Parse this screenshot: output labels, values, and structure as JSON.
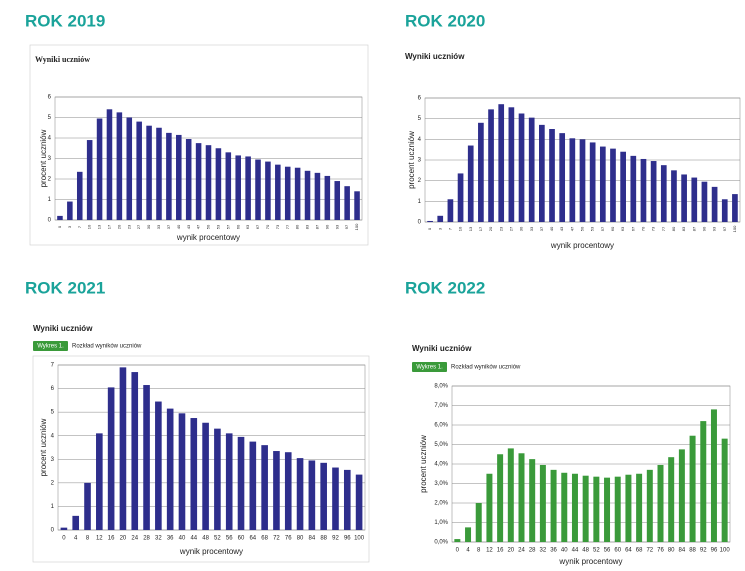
{
  "chart_data": [
    {
      "type": "bar",
      "heading": "ROK 2019",
      "title": "Wyniki uczniów",
      "xlabel": "wynik procentowy",
      "ylabel": "procent uczniów",
      "color": "#2e2e8c",
      "categories": [
        "0",
        "3",
        "7",
        "10",
        "13",
        "17",
        "20",
        "23",
        "27",
        "30",
        "33",
        "37",
        "40",
        "43",
        "47",
        "50",
        "53",
        "57",
        "60",
        "63",
        "67",
        "70",
        "73",
        "77",
        "80",
        "83",
        "87",
        "90",
        "93",
        "97",
        "100"
      ],
      "values": [
        0.2,
        0.9,
        2.35,
        3.9,
        4.95,
        5.4,
        5.25,
        5.0,
        4.8,
        4.6,
        4.5,
        4.25,
        4.15,
        3.95,
        3.75,
        3.65,
        3.5,
        3.3,
        3.15,
        3.1,
        2.95,
        2.85,
        2.7,
        2.6,
        2.55,
        2.4,
        2.3,
        2.15,
        1.9,
        1.65,
        1.4
      ],
      "ylim": [
        0,
        6
      ],
      "yticks": [
        0,
        1,
        2,
        3,
        4,
        5,
        6
      ],
      "grid": true
    },
    {
      "type": "bar",
      "heading": "ROK 2020",
      "title": "Wyniki uczniów",
      "xlabel": "wynik procentowy",
      "ylabel": "procent uczniów",
      "color": "#2e2e8c",
      "categories": [
        "0",
        "3",
        "7",
        "10",
        "13",
        "17",
        "20",
        "23",
        "27",
        "30",
        "33",
        "37",
        "40",
        "43",
        "47",
        "50",
        "53",
        "57",
        "60",
        "63",
        "67",
        "70",
        "73",
        "77",
        "80",
        "83",
        "87",
        "90",
        "93",
        "97",
        "100"
      ],
      "values": [
        0.05,
        0.3,
        1.1,
        2.35,
        3.7,
        4.8,
        5.45,
        5.7,
        5.55,
        5.25,
        5.05,
        4.7,
        4.5,
        4.3,
        4.05,
        4.0,
        3.85,
        3.65,
        3.55,
        3.4,
        3.2,
        3.05,
        2.95,
        2.75,
        2.5,
        2.3,
        2.15,
        1.95,
        1.7,
        1.1,
        1.35
      ],
      "ylim": [
        0,
        6
      ],
      "yticks": [
        0,
        1,
        2,
        3,
        4,
        5,
        6
      ],
      "grid": true
    },
    {
      "type": "bar",
      "heading": "ROK 2021",
      "title": "Wyniki uczniów",
      "badge": "Wykres 1.",
      "subtitle": "Rozkład wyników uczniów",
      "xlabel": "wynik procentowy",
      "ylabel": "procent uczniów",
      "color": "#2e2e8c",
      "categories": [
        "0",
        "4",
        "8",
        "12",
        "16",
        "20",
        "24",
        "28",
        "32",
        "36",
        "40",
        "44",
        "48",
        "52",
        "56",
        "60",
        "64",
        "68",
        "72",
        "76",
        "80",
        "84",
        "88",
        "92",
        "96",
        "100"
      ],
      "values": [
        0.1,
        0.6,
        2.0,
        4.1,
        6.05,
        6.9,
        6.7,
        6.15,
        5.45,
        5.15,
        4.95,
        4.75,
        4.55,
        4.3,
        4.1,
        3.95,
        3.75,
        3.6,
        3.35,
        3.3,
        3.05,
        2.95,
        2.85,
        2.65,
        2.55,
        2.35
      ],
      "ylim": [
        0,
        7
      ],
      "yticks": [
        0,
        1,
        2,
        3,
        4,
        5,
        6,
        7
      ],
      "grid": true
    },
    {
      "type": "bar",
      "heading": "ROK 2022",
      "title": "Wyniki uczniów",
      "badge": "Wykres 1.",
      "subtitle": "Rozkład wyników uczniów",
      "xlabel": "wynik procentowy",
      "ylabel": "procent uczniów",
      "color": "#3a9a3a",
      "categories": [
        "0",
        "4",
        "8",
        "12",
        "16",
        "20",
        "24",
        "28",
        "32",
        "36",
        "40",
        "44",
        "48",
        "52",
        "56",
        "60",
        "64",
        "68",
        "72",
        "76",
        "80",
        "84",
        "88",
        "92",
        "96",
        "100"
      ],
      "values": [
        0.15,
        0.75,
        2.0,
        3.5,
        4.5,
        4.8,
        4.55,
        4.25,
        3.95,
        3.7,
        3.55,
        3.5,
        3.4,
        3.35,
        3.3,
        3.35,
        3.45,
        3.5,
        3.7,
        3.95,
        4.35,
        4.75,
        5.45,
        6.2,
        6.8,
        5.3
      ],
      "ylim": [
        0,
        8
      ],
      "yticks": [
        {
          "value": 0,
          "label": "0,0%"
        },
        {
          "value": 1,
          "label": "1,0%"
        },
        {
          "value": 2,
          "label": "2,0%"
        },
        {
          "value": 3,
          "label": "3,0%"
        },
        {
          "value": 4,
          "label": "4,0%"
        },
        {
          "value": 5,
          "label": "5,0%"
        },
        {
          "value": 6,
          "label": "6,0%"
        },
        {
          "value": 7,
          "label": "7,0%"
        },
        {
          "value": 8,
          "label": "8,0%"
        }
      ],
      "grid": true
    }
  ]
}
